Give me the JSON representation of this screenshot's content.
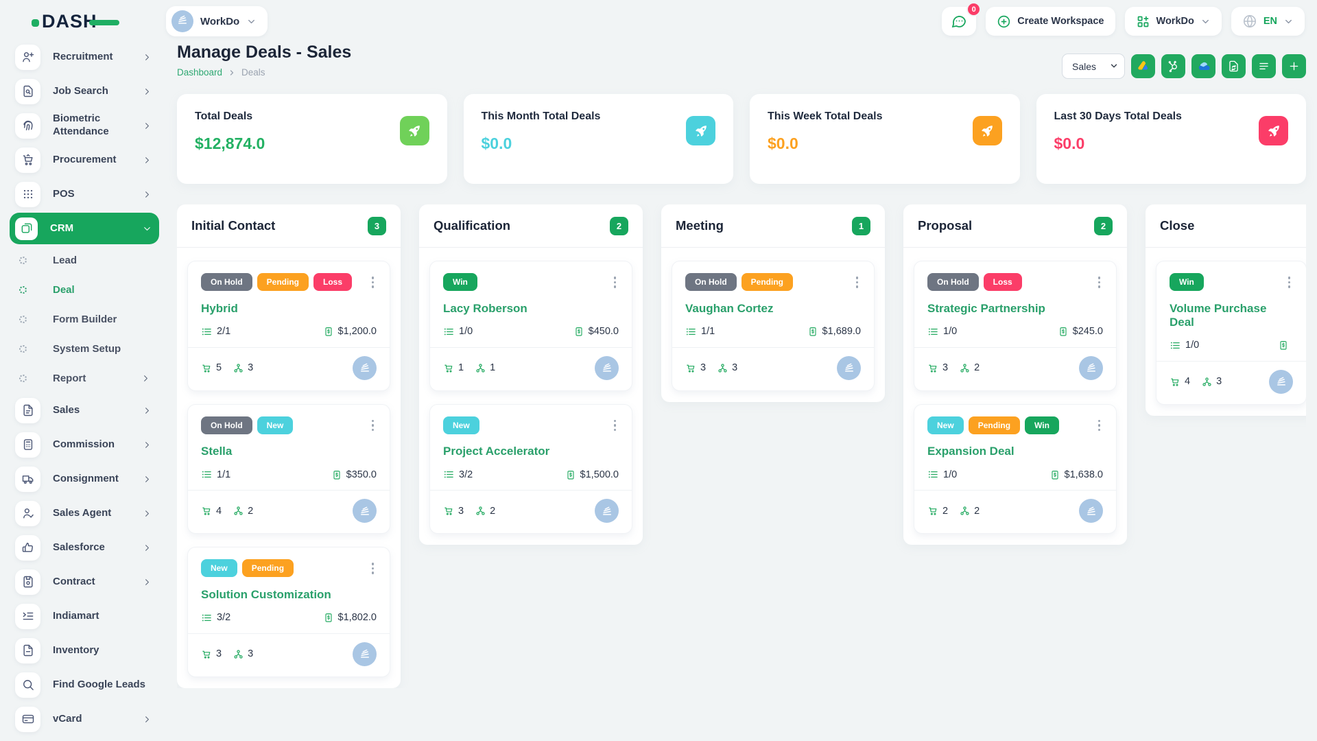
{
  "topbar": {
    "logo_text": "DASH",
    "workspace_name": "WorkDo",
    "notification_badge": "0",
    "create_workspace_label": "Create Workspace",
    "account_name": "WorkDo",
    "language": "EN"
  },
  "sidebar": {
    "items": [
      {
        "type": "item",
        "label": "Recruitment",
        "icon": "user-plus-icon",
        "chevron": true
      },
      {
        "type": "item",
        "label": "Job Search",
        "icon": "document-search-icon",
        "chevron": true
      },
      {
        "type": "item",
        "label": "Biometric Attendance",
        "icon": "fingerprint-icon",
        "chevron": true
      },
      {
        "type": "item",
        "label": "Procurement",
        "icon": "cart-icon",
        "chevron": true
      },
      {
        "type": "item",
        "label": "POS",
        "icon": "grid-dots-icon",
        "chevron": true
      },
      {
        "type": "item",
        "label": "CRM",
        "icon": "cards-icon",
        "chevron": true,
        "active": true,
        "expanded": true
      },
      {
        "type": "sub",
        "label": "Lead"
      },
      {
        "type": "sub",
        "label": "Deal",
        "active": true
      },
      {
        "type": "sub",
        "label": "Form Builder"
      },
      {
        "type": "sub",
        "label": "System Setup"
      },
      {
        "type": "sub",
        "label": "Report",
        "chevron": true
      },
      {
        "type": "item",
        "label": "Sales",
        "icon": "document-icon",
        "chevron": true
      },
      {
        "type": "item",
        "label": "Commission",
        "icon": "calculator-icon",
        "chevron": true
      },
      {
        "type": "item",
        "label": "Consignment",
        "icon": "truck-icon",
        "chevron": true
      },
      {
        "type": "item",
        "label": "Sales Agent",
        "icon": "user-check-icon",
        "chevron": true
      },
      {
        "type": "item",
        "label": "Salesforce",
        "icon": "thumbs-up-icon",
        "chevron": true
      },
      {
        "type": "item",
        "label": "Contract",
        "icon": "floppy-icon",
        "chevron": true
      },
      {
        "type": "item",
        "label": "Indiamart",
        "icon": "list-indent-icon",
        "chevron": false
      },
      {
        "type": "item",
        "label": "Inventory",
        "icon": "file-icon",
        "chevron": false
      },
      {
        "type": "item",
        "label": "Find Google Leads",
        "icon": "search-icon",
        "chevron": false
      },
      {
        "type": "item",
        "label": "vCard",
        "icon": "credit-card-icon",
        "chevron": true
      }
    ]
  },
  "page": {
    "title": "Manage Deals - Sales",
    "breadcrumb_home": "Dashboard",
    "breadcrumb_current": "Deals",
    "pipeline_selected": "Sales",
    "toolbar_icons": [
      "google-adsense-icon",
      "hubspot-icon",
      "onedrive-icon",
      "document-sync-icon",
      "list-icon",
      "plus-icon"
    ]
  },
  "stats": [
    {
      "title": "Total Deals",
      "value": "$12,874.0",
      "value_color": "#23b163",
      "icon_bg": "#70d159",
      "icon": "rocket-icon"
    },
    {
      "title": "This Month Total Deals",
      "value": "$0.0",
      "value_color": "#4cd1dd",
      "icon_bg": "#4cd1dd",
      "icon": "rocket-icon"
    },
    {
      "title": "This Week Total Deals",
      "value": "$0.0",
      "value_color": "#fca120",
      "icon_bg": "#fca120",
      "icon": "rocket-icon"
    },
    {
      "title": "Last 30 Days Total Deals",
      "value": "$0.0",
      "value_color": "#fb3d68",
      "icon_bg": "#fb3d68",
      "icon": "rocket-icon"
    }
  ],
  "badge_colors": {
    "On Hold": "#6e7582",
    "Pending": "#fca120",
    "Loss": "#fb3d68",
    "New": "#4cd1dd",
    "Win": "#17a65d"
  },
  "board": {
    "columns": [
      {
        "name": "Initial Contact",
        "count": "3",
        "cards": [
          {
            "badges": [
              "On Hold",
              "Pending",
              "Loss"
            ],
            "title": "Hybrid",
            "tasks": "2/1",
            "amount": "$1,200.0",
            "products": "5",
            "users": "3"
          },
          {
            "badges": [
              "On Hold",
              "New"
            ],
            "title": "Stella",
            "tasks": "1/1",
            "amount": "$350.0",
            "products": "4",
            "users": "2"
          },
          {
            "badges": [
              "New",
              "Pending"
            ],
            "title": "Solution Customization",
            "tasks": "3/2",
            "amount": "$1,802.0",
            "products": "3",
            "users": "3"
          }
        ]
      },
      {
        "name": "Qualification",
        "count": "2",
        "cards": [
          {
            "badges": [
              "Win"
            ],
            "title": "Lacy Roberson",
            "tasks": "1/0",
            "amount": "$450.0",
            "products": "1",
            "users": "1"
          },
          {
            "badges": [
              "New"
            ],
            "title": "Project Accelerator",
            "tasks": "3/2",
            "amount": "$1,500.0",
            "products": "3",
            "users": "2"
          }
        ]
      },
      {
        "name": "Meeting",
        "count": "1",
        "cards": [
          {
            "badges": [
              "On Hold",
              "Pending"
            ],
            "title": "Vaughan Cortez",
            "tasks": "1/1",
            "amount": "$1,689.0",
            "products": "3",
            "users": "3"
          }
        ]
      },
      {
        "name": "Proposal",
        "count": "2",
        "cards": [
          {
            "badges": [
              "On Hold",
              "Loss"
            ],
            "title": "Strategic Partnership",
            "tasks": "1/0",
            "amount": "$245.0",
            "products": "3",
            "users": "2"
          },
          {
            "badges": [
              "New",
              "Pending",
              "Win"
            ],
            "title": "Expansion Deal",
            "tasks": "1/0",
            "amount": "$1,638.0",
            "products": "2",
            "users": "2"
          }
        ]
      },
      {
        "name": "Close",
        "count": null,
        "cards": [
          {
            "badges": [
              "Win"
            ],
            "title": "Volume Purchase Deal",
            "tasks": "1/0",
            "amount": "",
            "products": "4",
            "users": "3"
          }
        ]
      }
    ]
  }
}
